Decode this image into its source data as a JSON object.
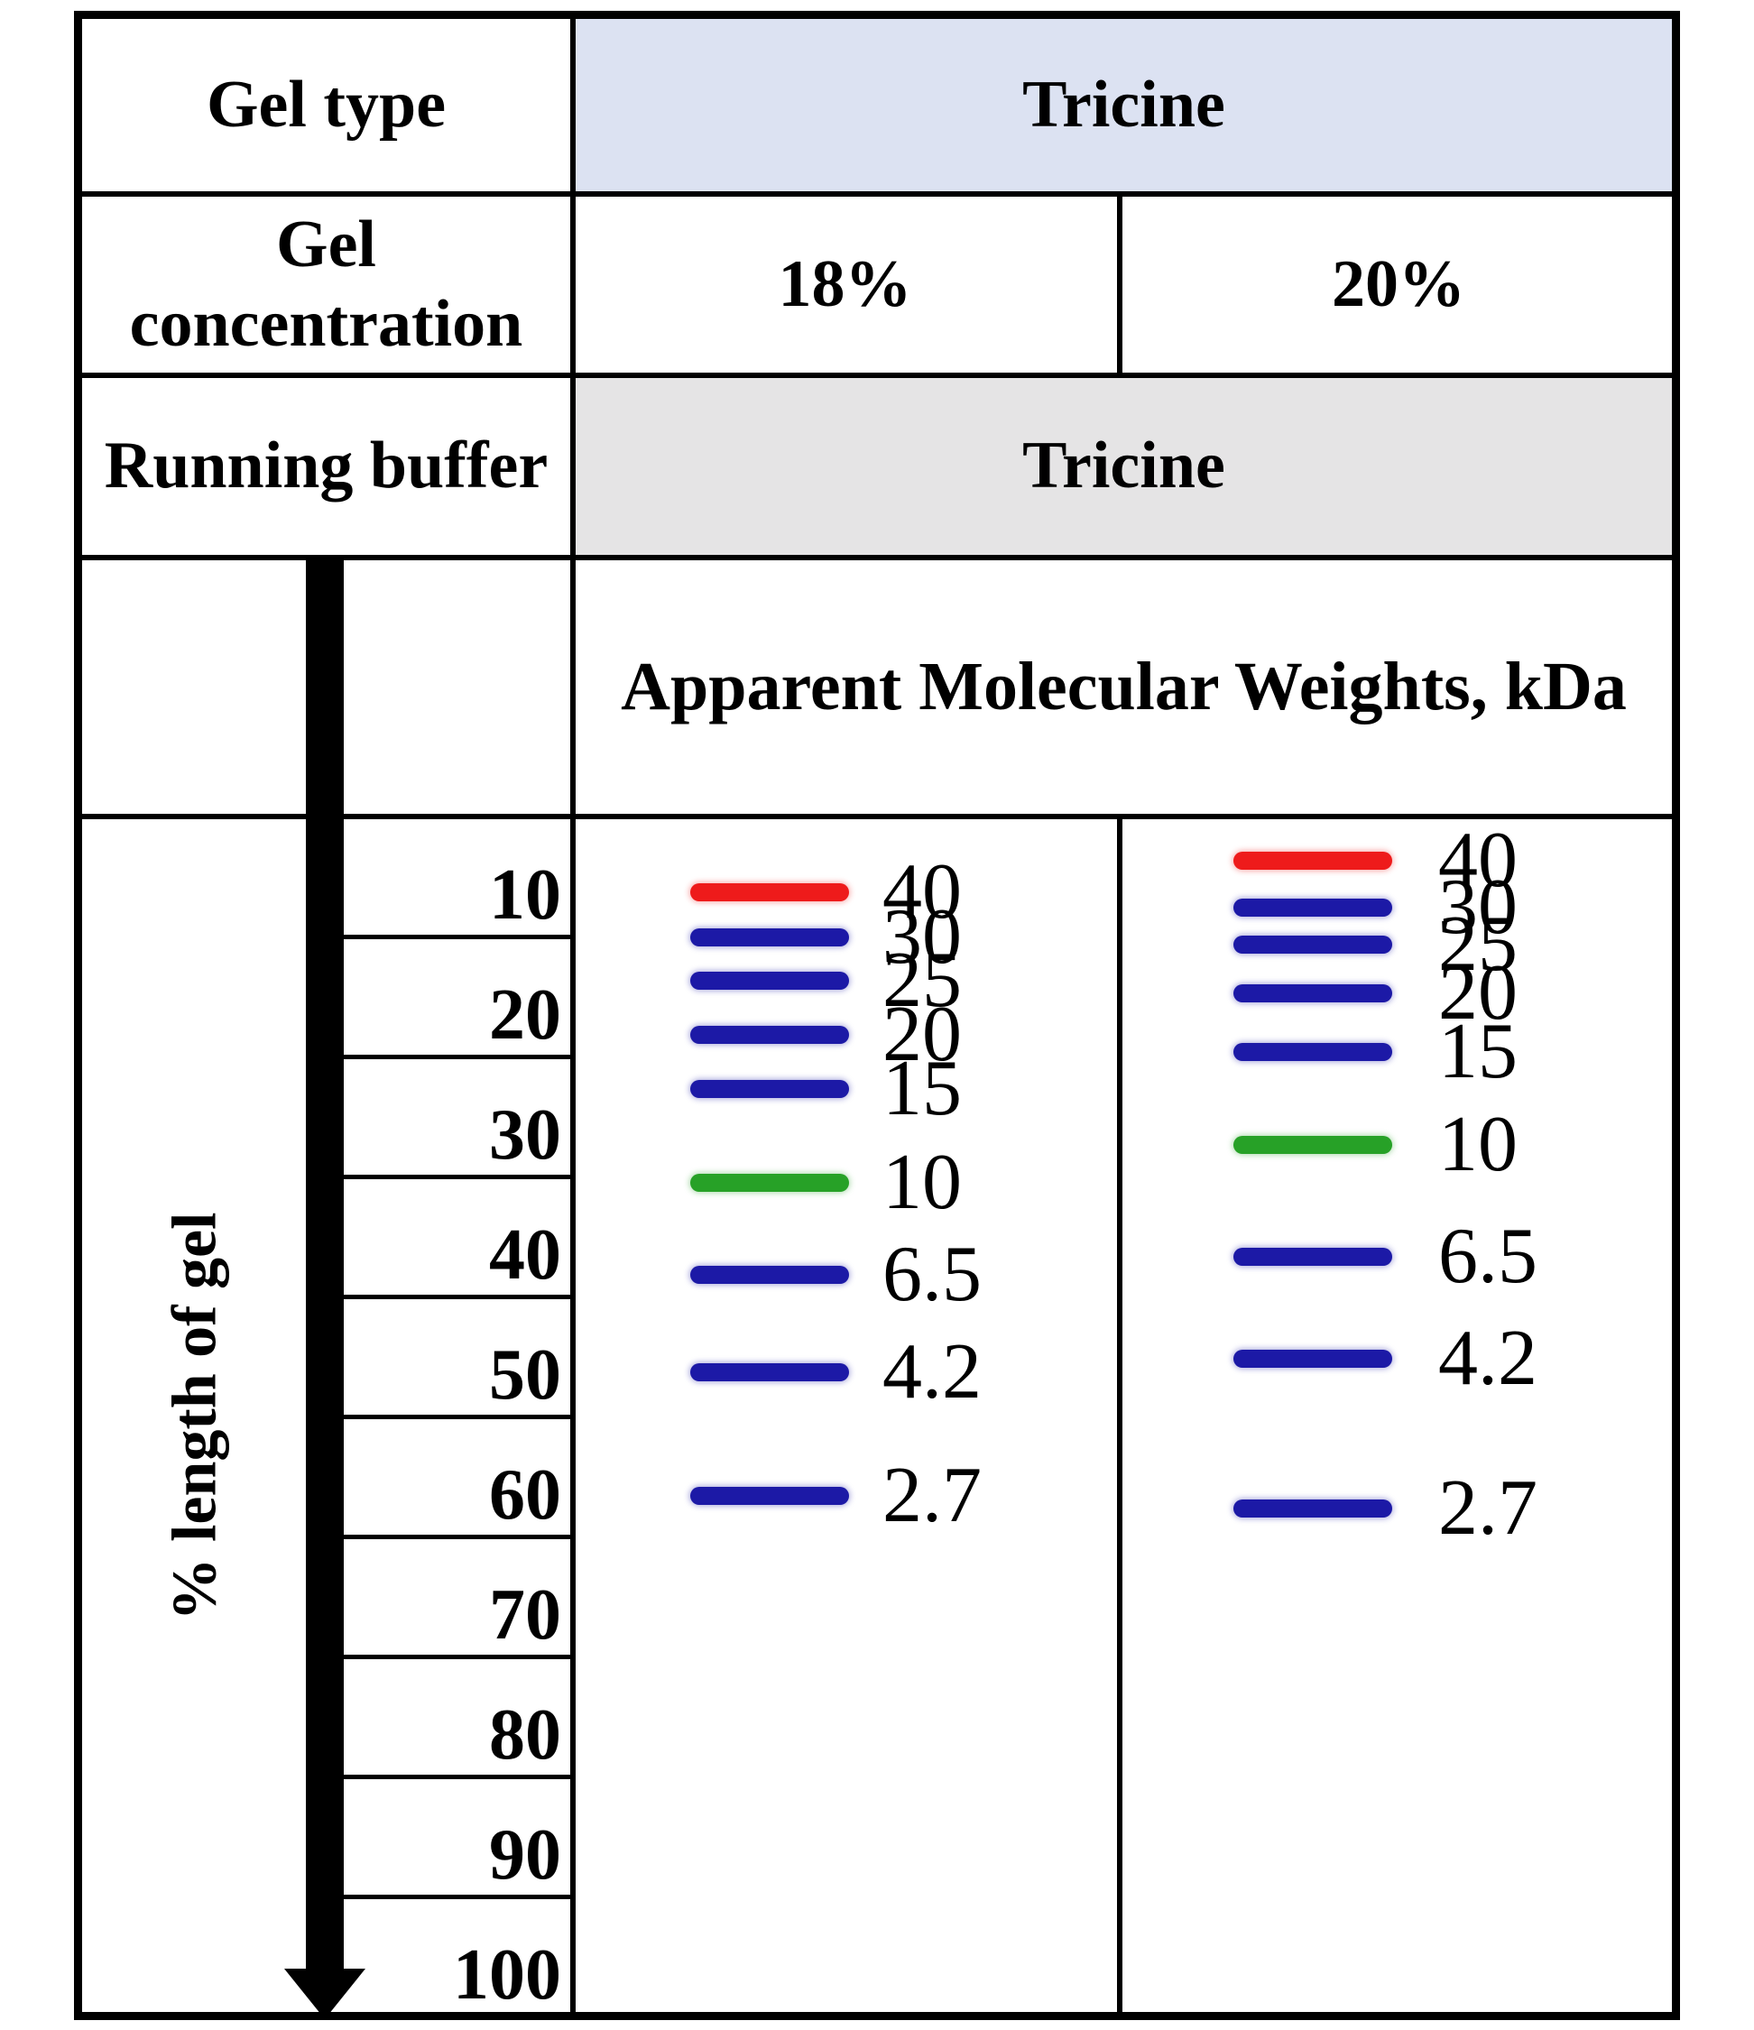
{
  "header": {
    "gel_type_label": "Gel type",
    "gel_concentration_label": "Gel concentration",
    "running_buffer_label": "Running buffer"
  },
  "colors": {
    "band_red": "#ee1b1b",
    "band_blue": "#1c19a6",
    "band_green": "#27a127",
    "gel_type_row_bg": "#dce2f2",
    "running_buffer_row_bg": "#e5e4e5",
    "line": "#000000"
  },
  "chart_data": {
    "type": "gel-migration",
    "title": "Apparent Molecular Weights, kDa",
    "gel_type": "Tricine",
    "running_buffer": "Tricine",
    "ylabel": "% length of gel",
    "ylim": [
      0,
      100
    ],
    "y_ticks": [
      10,
      20,
      30,
      40,
      50,
      60,
      70,
      80,
      90,
      100
    ],
    "lanes": [
      {
        "gel_concentration": "18%",
        "bands": [
          {
            "kda": "40",
            "percent_migration": 6.3,
            "color": "red"
          },
          {
            "kda": "30",
            "percent_migration": 10.1,
            "color": "blue"
          },
          {
            "kda": "25",
            "percent_migration": 13.7,
            "color": "blue"
          },
          {
            "kda": "20",
            "percent_migration": 18.2,
            "color": "blue"
          },
          {
            "kda": "15",
            "percent_migration": 22.7,
            "color": "blue"
          },
          {
            "kda": "10",
            "percent_migration": 30.5,
            "color": "green"
          },
          {
            "kda": "6.5",
            "percent_migration": 38.2,
            "color": "blue"
          },
          {
            "kda": "4.2",
            "percent_migration": 46.3,
            "color": "blue"
          },
          {
            "kda": "2.7",
            "percent_migration": 56.6,
            "color": "blue"
          }
        ]
      },
      {
        "gel_concentration": "20%",
        "bands": [
          {
            "kda": "40",
            "percent_migration": 3.7,
            "color": "red"
          },
          {
            "kda": "30",
            "percent_migration": 7.6,
            "color": "blue"
          },
          {
            "kda": "25",
            "percent_migration": 10.7,
            "color": "blue"
          },
          {
            "kda": "20",
            "percent_migration": 14.7,
            "color": "blue"
          },
          {
            "kda": "15",
            "percent_migration": 19.6,
            "color": "blue"
          },
          {
            "kda": "10",
            "percent_migration": 27.4,
            "color": "green"
          },
          {
            "kda": "6.5",
            "percent_migration": 36.7,
            "color": "blue"
          },
          {
            "kda": "4.2",
            "percent_migration": 45.2,
            "color": "blue"
          },
          {
            "kda": "2.7",
            "percent_migration": 57.7,
            "color": "blue"
          }
        ]
      }
    ]
  }
}
